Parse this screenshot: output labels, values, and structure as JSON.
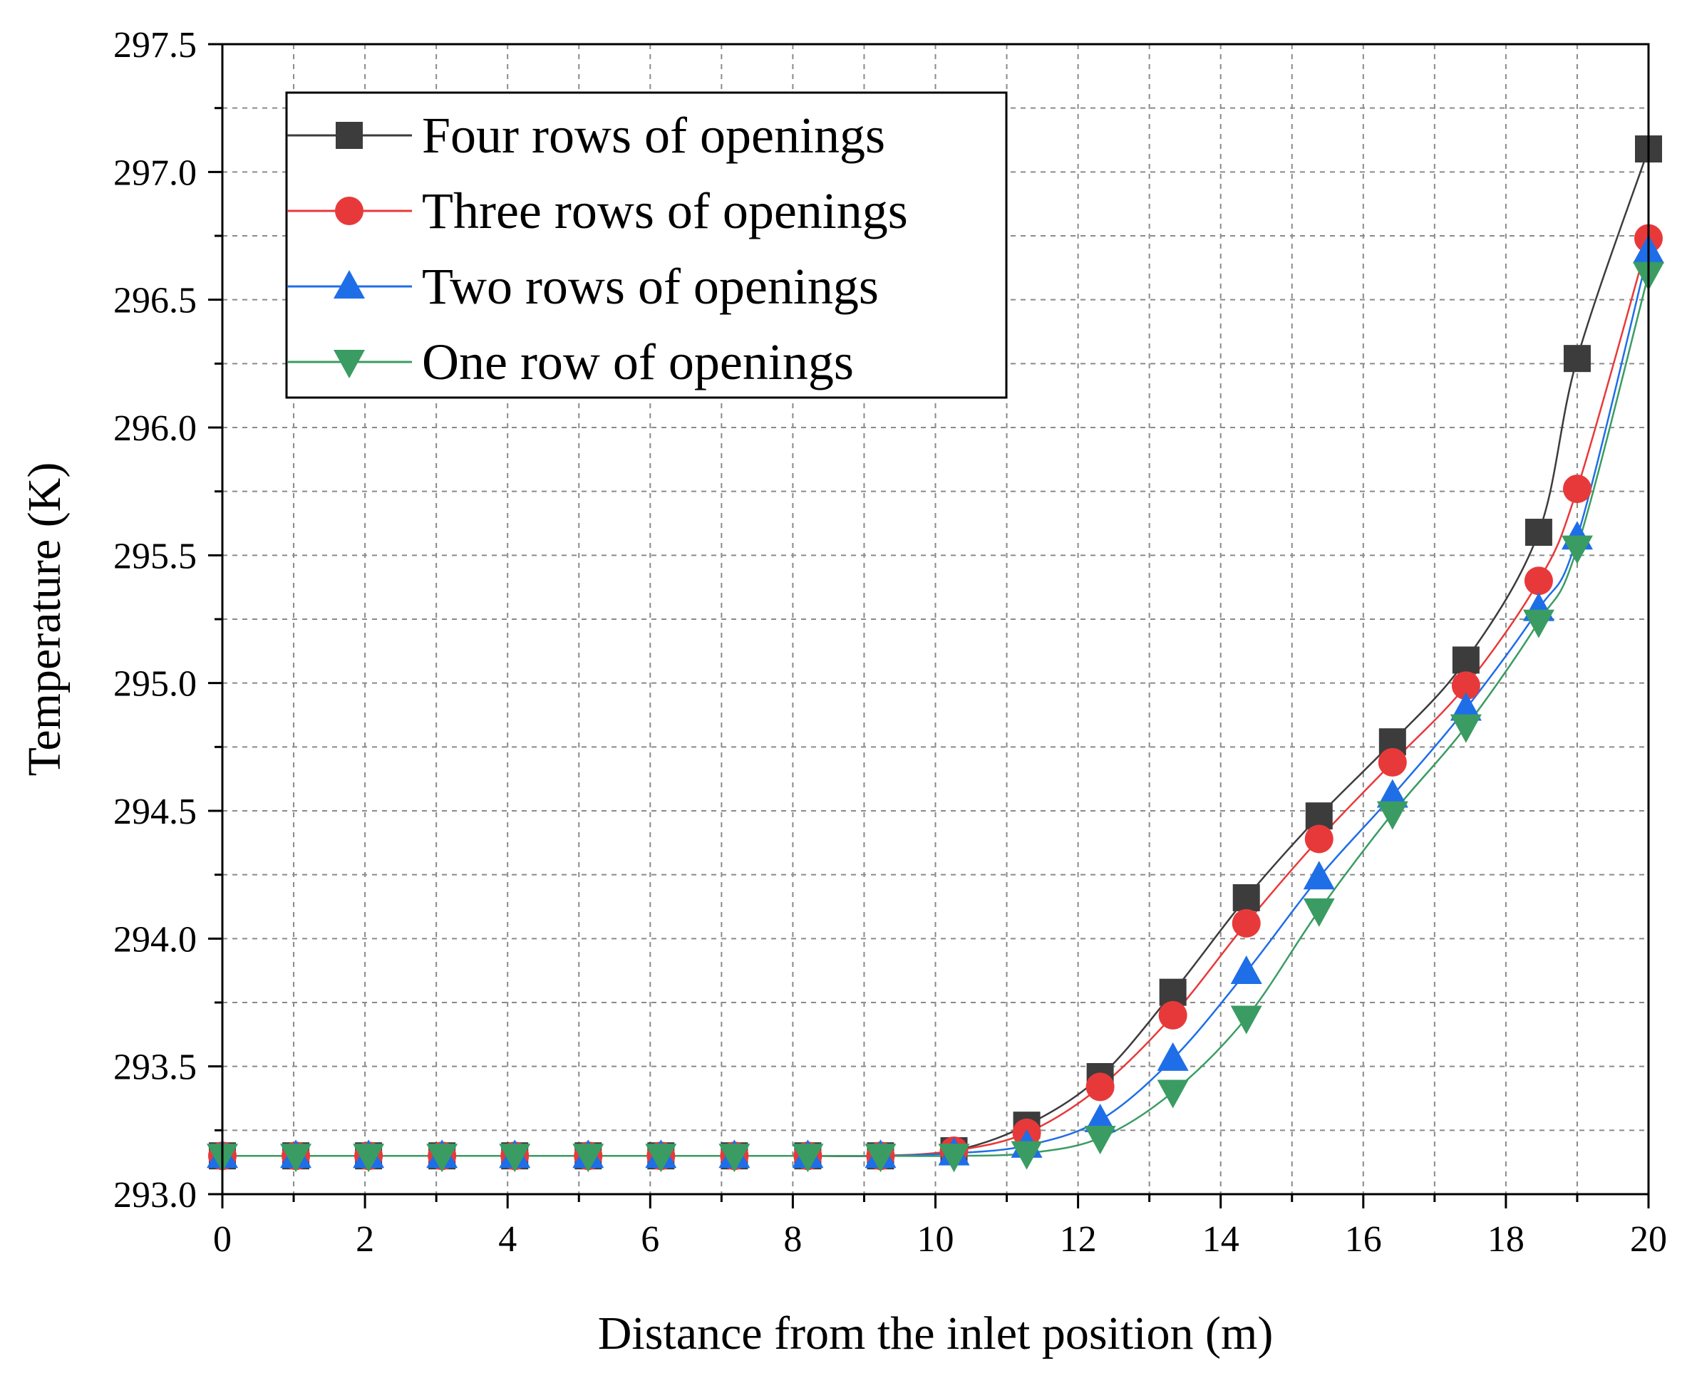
{
  "chart_data": {
    "type": "line",
    "title": "",
    "xlabel": "Distance from the inlet position (m)",
    "ylabel": "Temperature (K)",
    "xlim": [
      0,
      20
    ],
    "ylim": [
      293.0,
      297.5
    ],
    "xticks": [
      0,
      2,
      4,
      6,
      8,
      10,
      12,
      14,
      16,
      18,
      20
    ],
    "yticks": [
      293.0,
      293.5,
      294.0,
      294.5,
      295.0,
      295.5,
      296.0,
      296.5,
      297.0,
      297.5
    ],
    "xtick_labels": [
      "0",
      "2",
      "4",
      "6",
      "8",
      "10",
      "12",
      "14",
      "16",
      "18",
      "20"
    ],
    "ytick_labels": [
      "293.0",
      "293.5",
      "294.0",
      "294.5",
      "295.0",
      "295.5",
      "296.0",
      "296.5",
      "297.0",
      "297.5"
    ],
    "grid": true,
    "legend_position": "top-left",
    "x": [
      0,
      1.03,
      2.05,
      3.08,
      4.1,
      5.13,
      6.15,
      7.18,
      8.21,
      9.23,
      10.26,
      11.28,
      12.31,
      13.33,
      14.36,
      15.38,
      16.41,
      17.44,
      18.46,
      19.0,
      20.0
    ],
    "series": [
      {
        "name": "Four rows of openings",
        "color": "#3c3c3c",
        "marker": "square",
        "values": [
          293.15,
          293.15,
          293.15,
          293.15,
          293.15,
          293.15,
          293.15,
          293.15,
          293.15,
          293.15,
          293.17,
          293.27,
          293.46,
          293.79,
          294.16,
          294.48,
          294.77,
          295.09,
          295.59,
          296.27,
          297.09
        ]
      },
      {
        "name": "Three rows of openings",
        "color": "#e8393a",
        "marker": "circle",
        "values": [
          293.15,
          293.15,
          293.15,
          293.15,
          293.15,
          293.15,
          293.15,
          293.15,
          293.15,
          293.15,
          293.17,
          293.24,
          293.42,
          293.7,
          294.06,
          294.39,
          294.69,
          294.99,
          295.4,
          295.76,
          296.74
        ]
      },
      {
        "name": "Two rows of openings",
        "color": "#1e6ee8",
        "marker": "triangle-up",
        "values": [
          293.15,
          293.15,
          293.15,
          293.15,
          293.15,
          293.15,
          293.15,
          293.15,
          293.15,
          293.15,
          293.16,
          293.19,
          293.29,
          293.53,
          293.87,
          294.24,
          294.56,
          294.9,
          295.29,
          295.57,
          296.69
        ]
      },
      {
        "name": "One row of openings",
        "color": "#3a9c62",
        "marker": "triangle-down",
        "values": [
          293.15,
          293.15,
          293.15,
          293.15,
          293.15,
          293.15,
          293.15,
          293.15,
          293.15,
          293.15,
          293.15,
          293.16,
          293.22,
          293.4,
          293.69,
          294.11,
          294.49,
          294.83,
          295.24,
          295.53,
          296.6
        ]
      }
    ]
  }
}
